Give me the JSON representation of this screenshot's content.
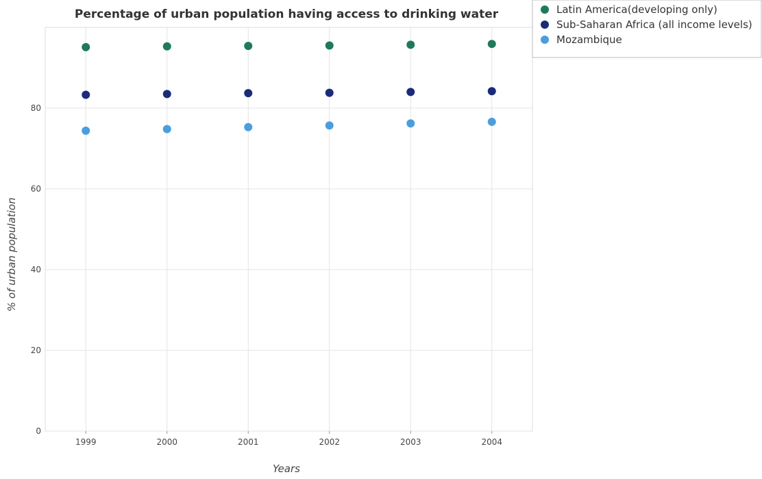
{
  "chart_data": {
    "type": "scatter",
    "title": "Percentage of urban population having access to drinking water",
    "xlabel": "Years",
    "ylabel": "% of urban population",
    "categories": [
      "1999",
      "2000",
      "2001",
      "2002",
      "2003",
      "2004"
    ],
    "ylim": [
      0,
      100
    ],
    "yticks": [
      0,
      20,
      40,
      60,
      80
    ],
    "grid": true,
    "legend_position": "top-right",
    "series": [
      {
        "name": "Latin America(developing only)",
        "color": "#1f7a5c",
        "values": [
          95.1,
          95.3,
          95.4,
          95.5,
          95.7,
          95.9
        ]
      },
      {
        "name": "Sub-Saharan Africa (all income levels)",
        "color": "#1a2b7a",
        "values": [
          83.3,
          83.5,
          83.7,
          83.8,
          84.0,
          84.2
        ]
      },
      {
        "name": "Mozambique",
        "color": "#4a9ede",
        "values": [
          74.4,
          74.8,
          75.3,
          75.7,
          76.2,
          76.6
        ]
      }
    ]
  }
}
